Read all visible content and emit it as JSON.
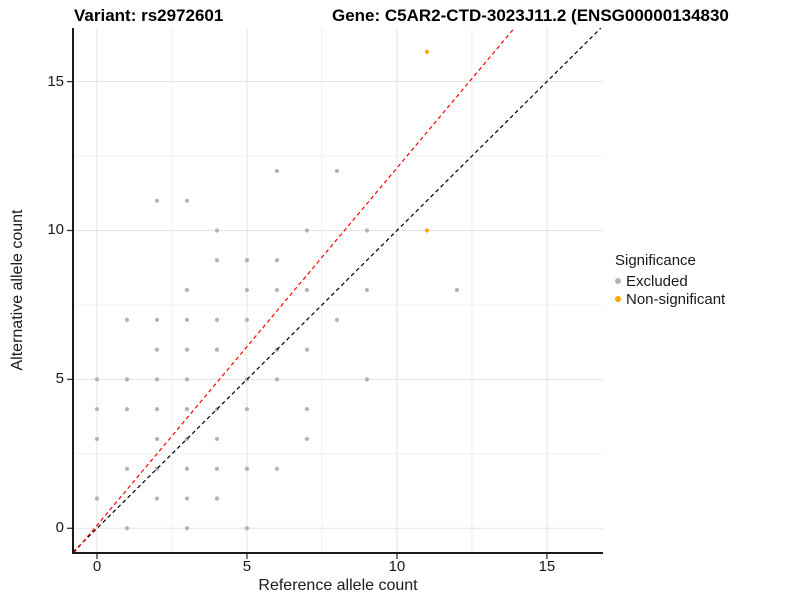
{
  "titles": {
    "variant": "Variant: rs2972601",
    "gene": "Gene: C5AR2-CTD-3023J11.2 (ENSG00000134830"
  },
  "legend": {
    "title": "Significance",
    "items": [
      {
        "label": "Excluded",
        "color": "#b3b3b3"
      },
      {
        "label": "Non-significant",
        "color": "#ffa500"
      }
    ]
  },
  "colors": {
    "excluded_point": "#b3b3b3",
    "non_significant_point": "#ffa500",
    "identity_line": "#000000",
    "fit_line": "#ff0000",
    "major_grid": "#e4e4e4",
    "minor_grid": "#f0f0f0",
    "axis_line": "#1a1a1a",
    "tick_mark": "#333333"
  },
  "chart_data": {
    "type": "scatter",
    "xlabel": "Reference allele count",
    "ylabel": "Alternative allele count",
    "xlim": [
      -0.8,
      16.87
    ],
    "ylim": [
      -0.83,
      16.8
    ],
    "x_ticks": [
      0,
      5,
      10,
      15
    ],
    "y_ticks": [
      0,
      5,
      10,
      15
    ],
    "x_minor": [
      2.5,
      7.5,
      12.5
    ],
    "y_minor": [
      2.5,
      7.5,
      12.5
    ],
    "grid": true,
    "legend_position": "right",
    "series": [
      {
        "name": "Excluded",
        "color": "#b3b3b3",
        "points": [
          [
            1,
            0
          ],
          [
            3,
            0
          ],
          [
            5,
            0
          ],
          [
            0,
            1
          ],
          [
            2,
            1
          ],
          [
            3,
            1
          ],
          [
            4,
            1
          ],
          [
            1,
            2
          ],
          [
            2,
            2
          ],
          [
            3,
            2
          ],
          [
            4,
            2
          ],
          [
            5,
            2
          ],
          [
            6,
            2
          ],
          [
            0,
            3
          ],
          [
            2,
            3
          ],
          [
            3,
            3
          ],
          [
            4,
            3
          ],
          [
            7,
            3
          ],
          [
            0,
            4
          ],
          [
            1,
            4
          ],
          [
            2,
            4
          ],
          [
            3,
            4
          ],
          [
            4,
            4
          ],
          [
            5,
            4
          ],
          [
            7,
            4
          ],
          [
            0,
            5
          ],
          [
            1,
            5
          ],
          [
            2,
            5
          ],
          [
            3,
            5
          ],
          [
            5,
            5
          ],
          [
            6,
            5
          ],
          [
            9,
            5
          ],
          [
            2,
            6
          ],
          [
            3,
            6
          ],
          [
            4,
            6
          ],
          [
            6,
            6
          ],
          [
            7,
            6
          ],
          [
            1,
            7
          ],
          [
            2,
            7
          ],
          [
            3,
            7
          ],
          [
            4,
            7
          ],
          [
            5,
            7
          ],
          [
            8,
            7
          ],
          [
            3,
            8
          ],
          [
            5,
            8
          ],
          [
            6,
            8
          ],
          [
            7,
            8
          ],
          [
            9,
            8
          ],
          [
            12,
            8
          ],
          [
            4,
            9
          ],
          [
            5,
            9
          ],
          [
            6,
            9
          ],
          [
            4,
            10
          ],
          [
            7,
            10
          ],
          [
            9,
            10
          ],
          [
            2,
            11
          ],
          [
            3,
            11
          ],
          [
            6,
            12
          ],
          [
            8,
            12
          ]
        ]
      },
      {
        "name": "Non-significant",
        "color": "#ffa500",
        "points": [
          [
            11,
            10
          ],
          [
            11,
            16
          ]
        ]
      }
    ],
    "lines": [
      {
        "name": "identity",
        "color": "#000000",
        "slope": 1,
        "intercept": 0,
        "dash": "4 3"
      },
      {
        "name": "fit",
        "color": "#ff0000",
        "slope": 1.2,
        "intercept": 0.1,
        "dash": "4 3"
      }
    ]
  }
}
